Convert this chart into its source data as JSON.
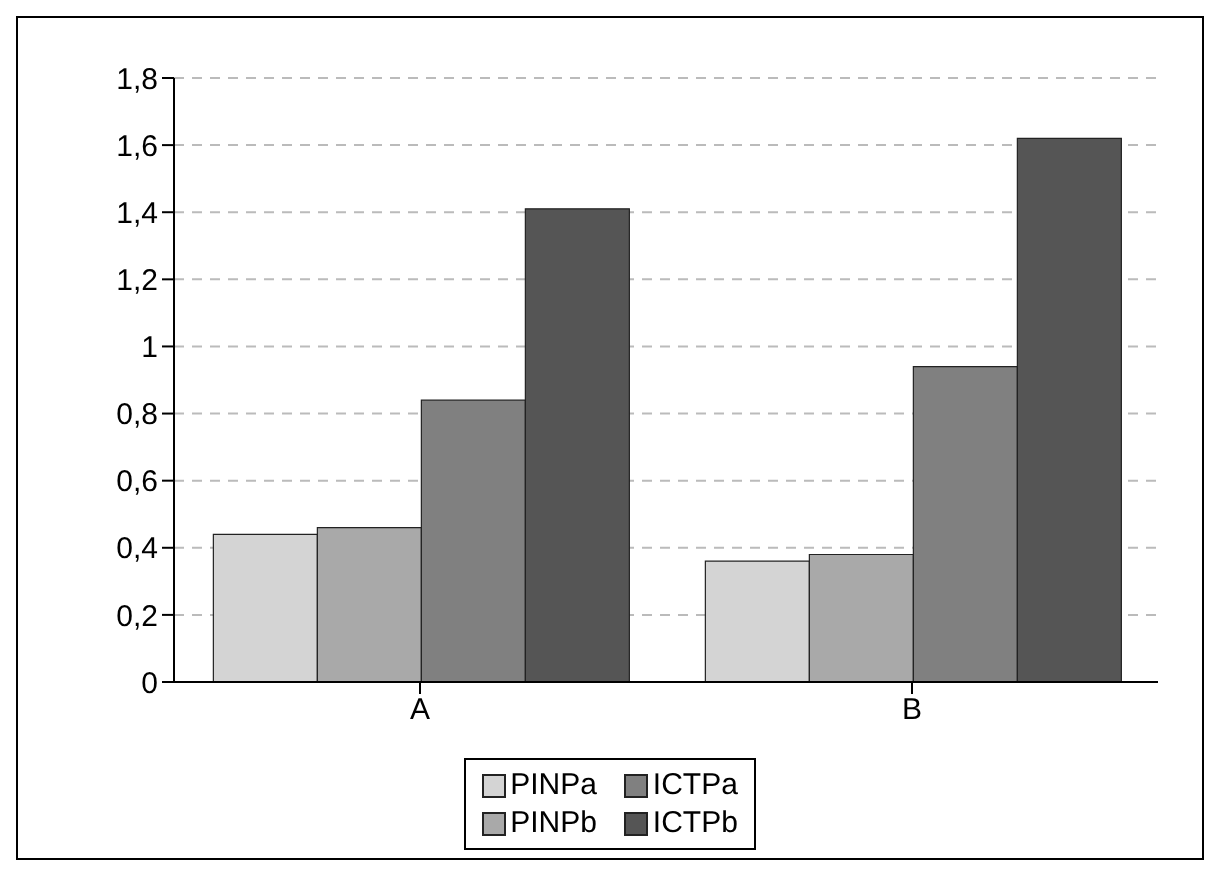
{
  "chart_data": {
    "type": "bar",
    "categories": [
      "A",
      "B"
    ],
    "series": [
      {
        "name": "PINPa",
        "color": "#d4d4d4",
        "values": [
          0.44,
          0.36
        ]
      },
      {
        "name": "PINPb",
        "color": "#a9a9a9",
        "values": [
          0.46,
          0.38
        ]
      },
      {
        "name": "ICTPa",
        "color": "#808080",
        "values": [
          0.84,
          0.94
        ]
      },
      {
        "name": "ICTPb",
        "color": "#555555",
        "values": [
          1.41,
          1.62
        ]
      }
    ],
    "ylim": [
      0,
      1.8
    ],
    "yticks": [
      0,
      {
        "value": 0.2,
        "label": "0,2"
      },
      {
        "value": 0.4,
        "label": "0,4"
      },
      {
        "value": 0.6,
        "label": "0,6"
      },
      {
        "value": 0.8,
        "label": "0,8"
      },
      1,
      {
        "value": 1.2,
        "label": "1,2"
      },
      {
        "value": 1.4,
        "label": "1,4"
      },
      {
        "value": 1.6,
        "label": "1,6"
      },
      {
        "value": 1.8,
        "label": "1,8"
      }
    ],
    "grid": "y",
    "legend": "bottom"
  }
}
